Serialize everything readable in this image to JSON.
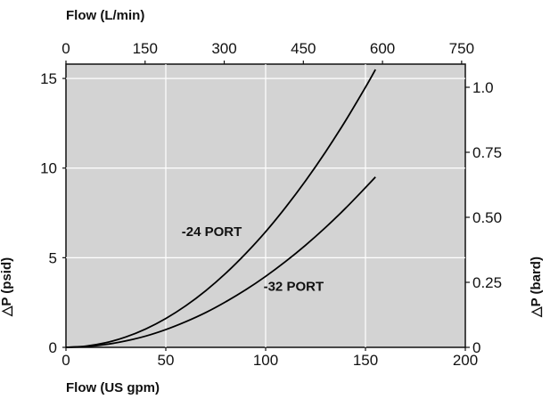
{
  "chart_data": {
    "type": "line",
    "title": "",
    "xlabel": "Flow (US gpm)",
    "x2label": "Flow (L/min)",
    "ylabel": "△P (psid)",
    "y2label": "△P (bard)",
    "xlim": [
      0,
      200
    ],
    "ylim": [
      0,
      15.8
    ],
    "x2lim": [
      0,
      757
    ],
    "y2lim": [
      0,
      1.089
    ],
    "x_ticks": [
      0,
      50,
      100,
      150,
      200
    ],
    "y_ticks": [
      0,
      5,
      10,
      15
    ],
    "x2_ticks": [
      0,
      150,
      300,
      450,
      600,
      750
    ],
    "y2_ticks": [
      "0",
      "0.25",
      "0.50",
      "0.75",
      "1.0"
    ],
    "y2_tick_values": [
      0,
      0.25,
      0.5,
      0.75,
      1.0
    ],
    "grid": true,
    "background_color": "#d3d3d3",
    "series": [
      {
        "name": "-24 PORT",
        "color": "#000000",
        "x": [
          0,
          10,
          20,
          30,
          40,
          50,
          60,
          70,
          80,
          90,
          100,
          110,
          120,
          130,
          140,
          150,
          155
        ],
        "y": [
          0,
          0.07,
          0.26,
          0.58,
          1.03,
          1.61,
          2.32,
          3.16,
          4.13,
          5.23,
          6.45,
          7.81,
          9.29,
          10.9,
          12.64,
          14.51,
          15.5
        ]
      },
      {
        "name": "-32 PORT",
        "color": "#000000",
        "x": [
          0,
          10,
          20,
          30,
          40,
          50,
          60,
          70,
          80,
          90,
          100,
          110,
          120,
          130,
          140,
          150,
          155
        ],
        "y": [
          0,
          0.04,
          0.16,
          0.36,
          0.63,
          0.99,
          1.43,
          1.94,
          2.54,
          3.21,
          3.96,
          4.79,
          5.7,
          6.69,
          7.76,
          8.91,
          9.5
        ]
      }
    ],
    "annotations": [
      {
        "text": "-24 PORT",
        "x": 73,
        "y": 6.2
      },
      {
        "text": "-32 PORT",
        "x": 114,
        "y": 3.15
      }
    ]
  }
}
